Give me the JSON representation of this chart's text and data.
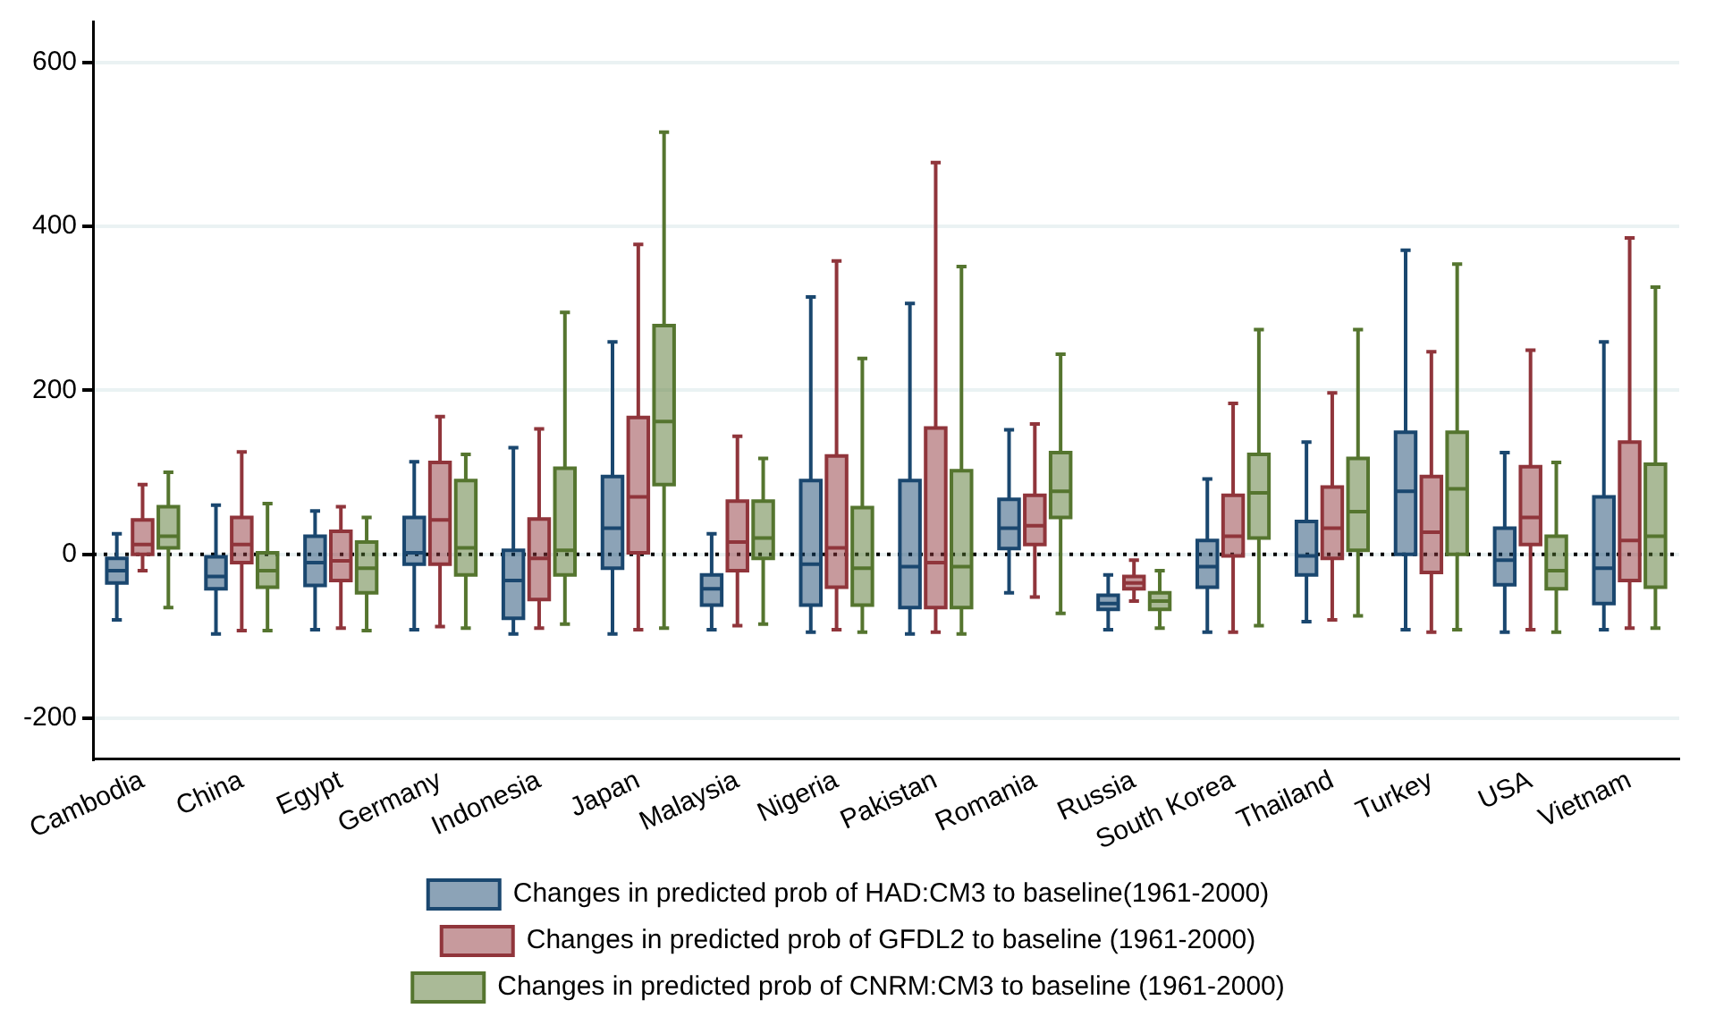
{
  "chart_data": {
    "type": "box",
    "categories": [
      "Cambodia",
      "China",
      "Egypt",
      "Germany",
      "Indonesia",
      "Japan",
      "Malaysia",
      "Nigeria",
      "Pakistan",
      "Romania",
      "Russia",
      "South Korea",
      "Thailand",
      "Turkey",
      "USA",
      "Vietnam"
    ],
    "ylim": [
      -250,
      650
    ],
    "yticks": [
      -200,
      0,
      200,
      400,
      600
    ],
    "grid": "y",
    "legend": "bottom",
    "ref_lines": [
      {
        "axis": "y",
        "value": 0,
        "color": "#000000",
        "line_style": "dotted"
      }
    ],
    "series": [
      {
        "name": "Changes in predicted prob of HAD:CM3 to baseline(1961-2000)",
        "color": "#1a476f",
        "boxes": [
          {
            "low": -80,
            "q1": -35,
            "median": -20,
            "q3": -5,
            "high": 25
          },
          {
            "low": -97,
            "q1": -42,
            "median": -27,
            "q3": -3,
            "high": 60
          },
          {
            "low": -92,
            "q1": -38,
            "median": -10,
            "q3": 22,
            "high": 53
          },
          {
            "low": -92,
            "q1": -12,
            "median": 2,
            "q3": 45,
            "high": 113
          },
          {
            "low": -97,
            "q1": -78,
            "median": -32,
            "q3": 5,
            "high": 130
          },
          {
            "low": -97,
            "q1": -17,
            "median": 32,
            "q3": 95,
            "high": 259
          },
          {
            "low": -92,
            "q1": -62,
            "median": -42,
            "q3": -25,
            "high": 25
          },
          {
            "low": -95,
            "q1": -62,
            "median": -12,
            "q3": 90,
            "high": 314
          },
          {
            "low": -97,
            "q1": -65,
            "median": -15,
            "q3": 90,
            "high": 306
          },
          {
            "low": -47,
            "q1": 7,
            "median": 32,
            "q3": 67,
            "high": 152
          },
          {
            "low": -92,
            "q1": -67,
            "median": -60,
            "q3": -50,
            "high": -25
          },
          {
            "low": -95,
            "q1": -40,
            "median": -15,
            "q3": 17,
            "high": 92
          },
          {
            "low": -82,
            "q1": -25,
            "median": -2,
            "q3": 40,
            "high": 137
          },
          {
            "low": -92,
            "q1": 0,
            "median": 77,
            "q3": 149,
            "high": 371
          },
          {
            "low": -95,
            "q1": -37,
            "median": -7,
            "q3": 32,
            "high": 124
          },
          {
            "low": -92,
            "q1": -60,
            "median": -17,
            "q3": 70,
            "high": 259
          }
        ]
      },
      {
        "name": "Changes in predicted prob of GFDL2 to baseline (1961-2000)",
        "color": "#90353b",
        "boxes": [
          {
            "low": -20,
            "q1": 0,
            "median": 12,
            "q3": 42,
            "high": 85
          },
          {
            "low": -93,
            "q1": -10,
            "median": 12,
            "q3": 45,
            "high": 125
          },
          {
            "low": -90,
            "q1": -32,
            "median": -8,
            "q3": 28,
            "high": 58
          },
          {
            "low": -88,
            "q1": -12,
            "median": 42,
            "q3": 112,
            "high": 168
          },
          {
            "low": -90,
            "q1": -55,
            "median": -5,
            "q3": 43,
            "high": 153
          },
          {
            "low": -92,
            "q1": 2,
            "median": 70,
            "q3": 167,
            "high": 378
          },
          {
            "low": -87,
            "q1": -20,
            "median": 15,
            "q3": 65,
            "high": 144
          },
          {
            "low": -92,
            "q1": -40,
            "median": 8,
            "q3": 120,
            "high": 358
          },
          {
            "low": -95,
            "q1": -65,
            "median": -10,
            "q3": 154,
            "high": 478
          },
          {
            "low": -52,
            "q1": 12,
            "median": 35,
            "q3": 72,
            "high": 159
          },
          {
            "low": -57,
            "q1": -42,
            "median": -35,
            "q3": -27,
            "high": -7
          },
          {
            "low": -95,
            "q1": -2,
            "median": 22,
            "q3": 72,
            "high": 184
          },
          {
            "low": -80,
            "q1": -5,
            "median": 32,
            "q3": 82,
            "high": 197
          },
          {
            "low": -95,
            "q1": -22,
            "median": 27,
            "q3": 95,
            "high": 247
          },
          {
            "low": -92,
            "q1": 12,
            "median": 45,
            "q3": 107,
            "high": 249
          },
          {
            "low": -90,
            "q1": -32,
            "median": 17,
            "q3": 137,
            "high": 386
          }
        ]
      },
      {
        "name": "Changes in predicted prob of CNRM:CM3 to baseline (1961-2000)",
        "color": "#55752f",
        "boxes": [
          {
            "low": -65,
            "q1": 8,
            "median": 22,
            "q3": 58,
            "high": 100
          },
          {
            "low": -93,
            "q1": -40,
            "median": -20,
            "q3": 2,
            "high": 62
          },
          {
            "low": -93,
            "q1": -47,
            "median": -17,
            "q3": 15,
            "high": 45
          },
          {
            "low": -90,
            "q1": -25,
            "median": 8,
            "q3": 90,
            "high": 122
          },
          {
            "low": -85,
            "q1": -25,
            "median": 5,
            "q3": 105,
            "high": 295
          },
          {
            "low": -90,
            "q1": 85,
            "median": 162,
            "q3": 279,
            "high": 515
          },
          {
            "low": -85,
            "q1": -5,
            "median": 20,
            "q3": 65,
            "high": 117
          },
          {
            "low": -95,
            "q1": -62,
            "median": -17,
            "q3": 57,
            "high": 239
          },
          {
            "low": -97,
            "q1": -65,
            "median": -15,
            "q3": 102,
            "high": 351
          },
          {
            "low": -72,
            "q1": 45,
            "median": 77,
            "q3": 124,
            "high": 244
          },
          {
            "low": -90,
            "q1": -67,
            "median": -57,
            "q3": -47,
            "high": -20
          },
          {
            "low": -87,
            "q1": 20,
            "median": 75,
            "q3": 122,
            "high": 274
          },
          {
            "low": -75,
            "q1": 5,
            "median": 52,
            "q3": 117,
            "high": 274
          },
          {
            "low": -92,
            "q1": 0,
            "median": 80,
            "q3": 149,
            "high": 354
          },
          {
            "low": -95,
            "q1": -42,
            "median": -20,
            "q3": 22,
            "high": 112
          },
          {
            "low": -90,
            "q1": -40,
            "median": 22,
            "q3": 110,
            "high": 326
          }
        ]
      }
    ]
  }
}
